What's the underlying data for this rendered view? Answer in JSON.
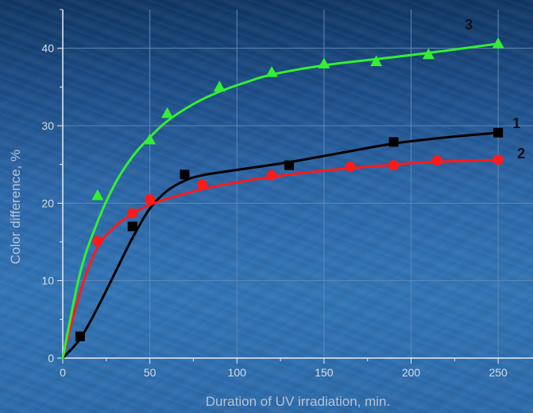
{
  "chart_data": {
    "type": "line",
    "xlabel": "Duration of UV irradiation, min.",
    "ylabel": "Color difference, %",
    "xlim": [
      0,
      270
    ],
    "ylim": [
      0,
      45
    ],
    "xticks": [
      0,
      50,
      100,
      150,
      200,
      250
    ],
    "yticks": [
      0,
      10,
      20,
      30,
      40
    ],
    "xtick_labels": [
      "0",
      "50",
      "100",
      "150",
      "200",
      "250"
    ],
    "ytick_labels": [
      "0",
      "10",
      "20",
      "30",
      "40"
    ],
    "grid": true,
    "series": [
      {
        "name": "1",
        "color": "#000000",
        "marker": "square",
        "points": [
          [
            10,
            2.8
          ],
          [
            40,
            17.0
          ],
          [
            70,
            23.7
          ],
          [
            130,
            24.9
          ],
          [
            190,
            27.9
          ],
          [
            250,
            29.1
          ]
        ],
        "curve": [
          [
            0,
            0
          ],
          [
            10,
            2.5
          ],
          [
            20,
            6.5
          ],
          [
            30,
            11.0
          ],
          [
            40,
            15.5
          ],
          [
            50,
            19.3
          ],
          [
            60,
            21.6
          ],
          [
            70,
            22.9
          ],
          [
            80,
            23.6
          ],
          [
            100,
            24.3
          ],
          [
            130,
            25.3
          ],
          [
            160,
            26.5
          ],
          [
            190,
            27.7
          ],
          [
            220,
            28.5
          ],
          [
            250,
            29.1
          ]
        ]
      },
      {
        "name": "2",
        "color": "#ff1a1a",
        "marker": "circle",
        "points": [
          [
            20,
            15.1
          ],
          [
            40,
            18.7
          ],
          [
            50,
            20.5
          ],
          [
            80,
            22.4
          ],
          [
            120,
            23.6
          ],
          [
            165,
            24.7
          ],
          [
            190,
            24.9
          ],
          [
            215,
            25.5
          ],
          [
            250,
            25.6
          ]
        ],
        "curve": [
          [
            0,
            0
          ],
          [
            10,
            8.5
          ],
          [
            20,
            14.3
          ],
          [
            30,
            17.0
          ],
          [
            40,
            18.6
          ],
          [
            50,
            19.8
          ],
          [
            65,
            20.9
          ],
          [
            80,
            21.8
          ],
          [
            100,
            22.7
          ],
          [
            120,
            23.4
          ],
          [
            150,
            24.2
          ],
          [
            180,
            24.8
          ],
          [
            210,
            25.3
          ],
          [
            250,
            25.6
          ]
        ]
      },
      {
        "name": "3",
        "color": "#33ee33",
        "marker": "triangle",
        "points": [
          [
            20,
            21.0
          ],
          [
            50,
            28.2
          ],
          [
            60,
            31.6
          ],
          [
            90,
            35.0
          ],
          [
            120,
            36.9
          ],
          [
            150,
            38.0
          ],
          [
            180,
            38.3
          ],
          [
            210,
            39.2
          ],
          [
            250,
            40.6
          ]
        ],
        "curve": [
          [
            0,
            0
          ],
          [
            10,
            11.0
          ],
          [
            20,
            17.6
          ],
          [
            30,
            22.5
          ],
          [
            40,
            26.0
          ],
          [
            50,
            28.5
          ],
          [
            60,
            30.6
          ],
          [
            75,
            32.8
          ],
          [
            90,
            34.4
          ],
          [
            105,
            35.6
          ],
          [
            120,
            36.6
          ],
          [
            150,
            37.8
          ],
          [
            180,
            38.6
          ],
          [
            210,
            39.4
          ],
          [
            250,
            40.6
          ]
        ]
      }
    ]
  }
}
